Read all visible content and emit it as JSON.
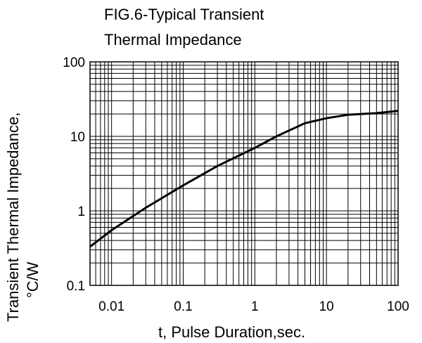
{
  "chart_data": {
    "type": "line",
    "title": [
      "FIG.6-Typical Transient",
      "Thermal Impedance"
    ],
    "xlabel": "t, Pulse Duration,sec.",
    "ylabel": [
      "Transient Thermal Impedance,",
      "°C/W"
    ],
    "xscale": "log",
    "yscale": "log",
    "xlim": [
      0.005,
      100
    ],
    "ylim": [
      0.1,
      100
    ],
    "grid": true,
    "x_ticks": [
      "0.01",
      "0.1",
      "1",
      "10",
      "100"
    ],
    "y_ticks": [
      "0.1",
      "1",
      "10",
      "100"
    ],
    "series": [
      {
        "x": [
          0.005,
          0.01,
          0.03,
          0.1,
          0.3,
          1,
          2,
          5,
          10,
          20,
          50,
          100
        ],
        "y": [
          0.33,
          0.55,
          1.1,
          2.2,
          4,
          7,
          10,
          15,
          17.5,
          19.5,
          20.5,
          22
        ]
      }
    ]
  }
}
